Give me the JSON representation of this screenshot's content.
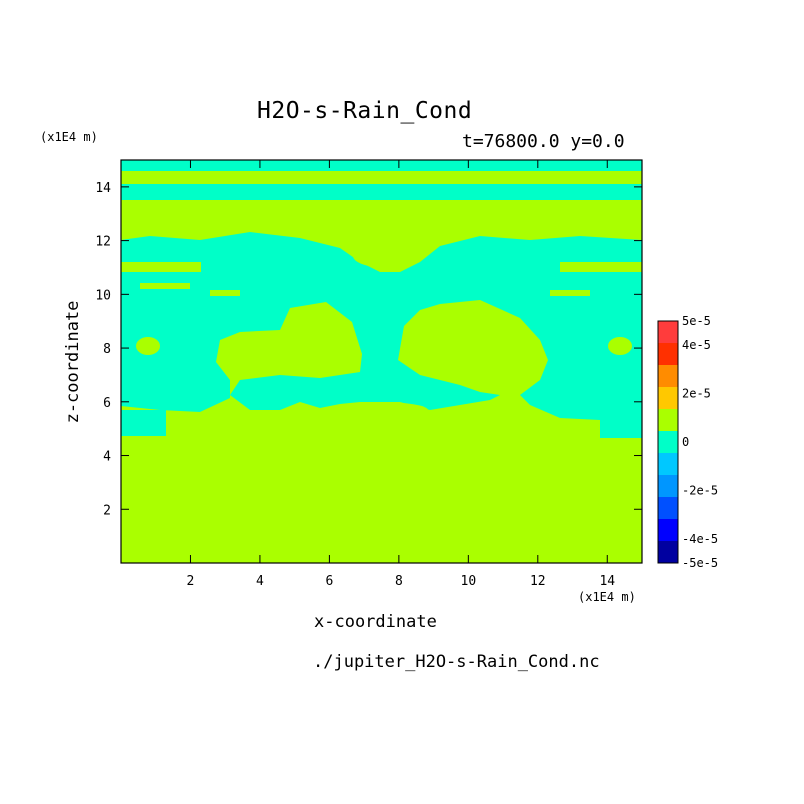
{
  "chart_data": {
    "type": "heatmap",
    "title": "H2O-s-Rain_Cond",
    "subtitle": "t=76800.0 y=0.0",
    "xlabel": "x-coordinate",
    "ylabel": "z-coordinate",
    "x_unit": "(x1E4 m)",
    "y_unit": "(x1E4 m)",
    "file_name": "./jupiter_H2O-s-Rain_Cond.nc",
    "xlim": [
      0,
      15
    ],
    "ylim": [
      0,
      15
    ],
    "x_ticks": [
      2,
      4,
      6,
      8,
      10,
      12,
      14
    ],
    "y_ticks": [
      2,
      4,
      6,
      8,
      10,
      12,
      14
    ],
    "colorbar": {
      "levels": [
        -5e-05,
        -4e-05,
        -3e-05,
        -2e-05,
        -1e-05,
        0,
        1e-05,
        2e-05,
        3e-05,
        4e-05,
        5e-05
      ],
      "colors": [
        "#0000a0",
        "#0000ff",
        "#0050ff",
        "#0096ff",
        "#00c8ff",
        "#00ffc8",
        "#aaff00",
        "#ffc800",
        "#ff8c00",
        "#ff3000",
        "#ff3c3c"
      ],
      "tick_labels": [
        "5e-5",
        "4e-5",
        "2e-5",
        "0",
        "-2e-5",
        "-4e-5",
        "-5e-5"
      ]
    },
    "field": {
      "background_value_color": "#aaff00",
      "negative_region_color": "#00ffc8",
      "description_regions": [
        {
          "z_range": [
            14.6,
            15.0
          ],
          "value": "slightly negative"
        },
        {
          "z_range": [
            13.5,
            14.1
          ],
          "value": "slightly negative"
        },
        {
          "z_range": [
            5.0,
            11.0
          ],
          "value": "mostly slightly negative with positive blobs"
        },
        {
          "z_range": [
            0,
            4.6
          ],
          "value": "near zero positive"
        }
      ]
    }
  }
}
